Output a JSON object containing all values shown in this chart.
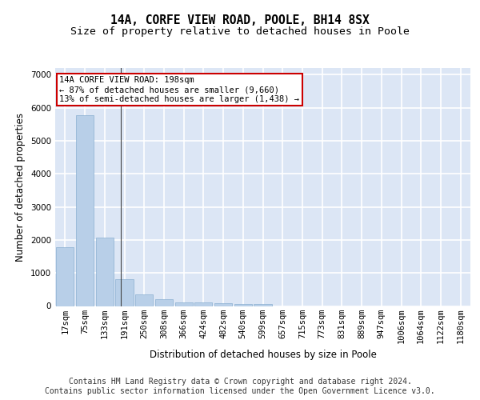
{
  "title1": "14A, CORFE VIEW ROAD, POOLE, BH14 8SX",
  "title2": "Size of property relative to detached houses in Poole",
  "xlabel": "Distribution of detached houses by size in Poole",
  "ylabel": "Number of detached properties",
  "bar_labels": [
    "17sqm",
    "75sqm",
    "133sqm",
    "191sqm",
    "250sqm",
    "308sqm",
    "366sqm",
    "424sqm",
    "482sqm",
    "540sqm",
    "599sqm",
    "657sqm",
    "715sqm",
    "773sqm",
    "831sqm",
    "889sqm",
    "947sqm",
    "1006sqm",
    "1064sqm",
    "1122sqm",
    "1180sqm"
  ],
  "bar_values": [
    1780,
    5780,
    2080,
    820,
    340,
    195,
    120,
    105,
    95,
    70,
    70,
    0,
    0,
    0,
    0,
    0,
    0,
    0,
    0,
    0,
    0
  ],
  "bar_color": "#b8cfe8",
  "annotation_text": "14A CORFE VIEW ROAD: 198sqm\n← 87% of detached houses are smaller (9,660)\n13% of semi-detached houses are larger (1,438) →",
  "annotation_box_color": "#ffffff",
  "annotation_border_color": "#cc0000",
  "vline_x": 2.82,
  "ylim": [
    0,
    7200
  ],
  "footer1": "Contains HM Land Registry data © Crown copyright and database right 2024.",
  "footer2": "Contains public sector information licensed under the Open Government Licence v3.0.",
  "background_color": "#dce6f5",
  "grid_color": "#ffffff",
  "title_fontsize": 10.5,
  "subtitle_fontsize": 9.5,
  "axis_label_fontsize": 8.5,
  "tick_fontsize": 7.5,
  "footer_fontsize": 7.0
}
